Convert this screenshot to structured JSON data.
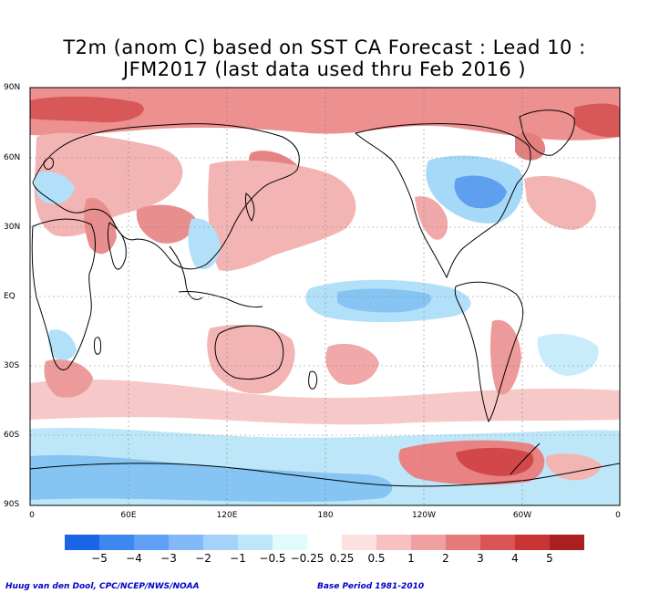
{
  "title": {
    "line1": "T2m (anom C) based on SST CA Forecast : Lead 10 :",
    "line2": "JFM2017 (last data used thru Feb 2016 )"
  },
  "lat_labels": [
    "90N",
    "60N",
    "30N",
    "EQ",
    "30S",
    "60S",
    "90S"
  ],
  "lon_labels": [
    "0",
    "60E",
    "120E",
    "180",
    "120W",
    "60W",
    "0"
  ],
  "legend": {
    "labels": [
      "−5",
      "−4",
      "−3",
      "−2",
      "−1",
      "−0.5",
      "−0.25",
      "0.25",
      "0.5",
      "1",
      "2",
      "3",
      "4",
      "5"
    ],
    "colors": [
      "#1a64e6",
      "#3c87f0",
      "#5fa0f5",
      "#82b9f8",
      "#a5d2fa",
      "#bde6f9",
      "#e0fbfd",
      "#ffffff",
      "#fde1e1",
      "#f8c0c0",
      "#f0a0a0",
      "#e67b7b",
      "#d95555",
      "#c83434",
      "#aa2020"
    ]
  },
  "footer": {
    "credit": "Huug van den Dool, CPC/NCEP/NWS/NOAA",
    "base_period": "Base Period 1981-2010"
  },
  "colors": {
    "warm_fill": "#ee9a9a",
    "warm_strong": "#d85050",
    "cool_fill": "#a8dcf8",
    "cool_strong": "#5a9ef0",
    "coast": "#000000"
  }
}
